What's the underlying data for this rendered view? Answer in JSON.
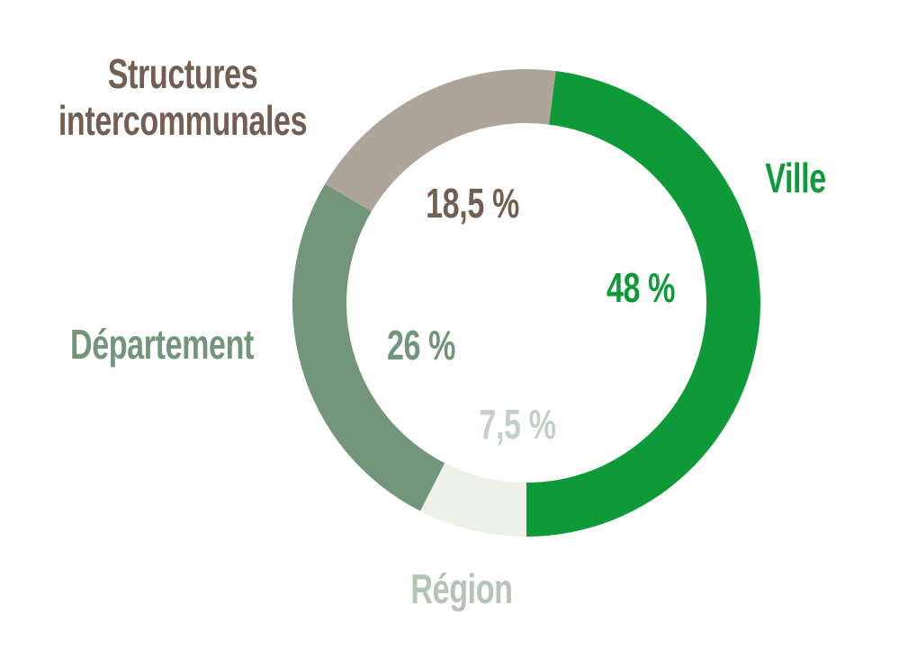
{
  "chart_data": {
    "type": "pie",
    "categories": [
      "Ville",
      "Région",
      "Département",
      "Structures intercommunales"
    ],
    "values": [
      48,
      7.5,
      26,
      18.5
    ],
    "value_labels": [
      "48 %",
      "7,5 %",
      "26 %",
      "18,5 %"
    ],
    "colors": [
      "#0f9a3a",
      "#edf1ea",
      "#72957c",
      "#aea49a"
    ],
    "label_colors": [
      "#0f9a3a",
      "#b6c4b8",
      "#72957c",
      "#735f52"
    ],
    "donut": true
  }
}
